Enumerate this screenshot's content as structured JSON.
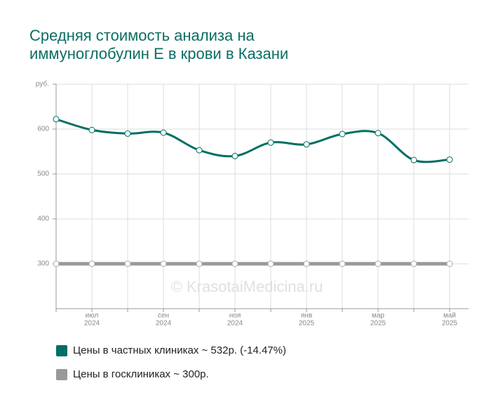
{
  "chart_data": {
    "type": "line",
    "title": "Средняя стоимость анализа на иммуноглобулин Е в крови в Казани",
    "annotation": "© KrasotaiMedicina.ru",
    "categories": [
      null,
      [
        "июл",
        "2024"
      ],
      null,
      [
        "сен",
        "2024"
      ],
      null,
      [
        "ноя",
        "2024"
      ],
      null,
      [
        "янв",
        "2025"
      ],
      null,
      [
        "мар",
        "2025"
      ],
      null,
      [
        "май",
        "2025"
      ]
    ],
    "series": [
      {
        "name": "Цены в частных клиниках ~ 532р. (-14.47%)",
        "color": "#006e64",
        "values": [
          622,
          598,
          590,
          592,
          553,
          540,
          570,
          566,
          589,
          591,
          531,
          532
        ]
      },
      {
        "name": "Цены в госклиниках ~ 300р.",
        "color": "#999999",
        "values": [
          300,
          300,
          300,
          300,
          300,
          300,
          300,
          300,
          300,
          300,
          300,
          300
        ]
      }
    ],
    "ylim": [
      200,
      700
    ],
    "yticks": [
      300,
      400,
      500,
      600,
      {
        "value": 700,
        "label": "руб."
      }
    ],
    "grid": true
  }
}
